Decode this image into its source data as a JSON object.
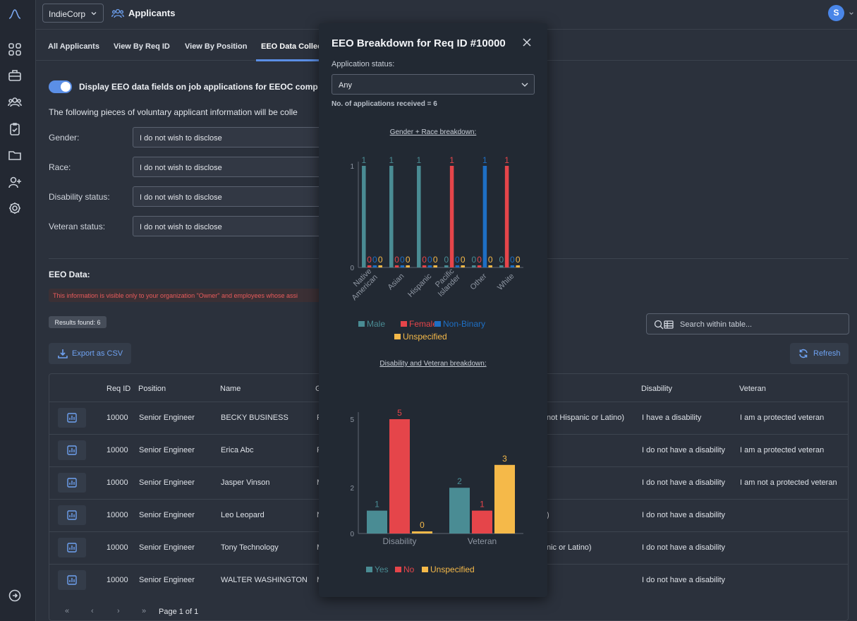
{
  "rail": {
    "items": [
      "logo-icon",
      "grid-icon",
      "briefcase-icon",
      "users-icon",
      "clipboard-icon",
      "folder-icon",
      "user-plus-icon",
      "gear-icon",
      "sign-out-icon"
    ]
  },
  "header": {
    "org": "IndieCorp",
    "title": "Applicants",
    "avatar": "S"
  },
  "tabs": [
    "All Applicants",
    "View By Req ID",
    "View By Position",
    "EEO Data Collec"
  ],
  "eeo_settings": {
    "toggle_label": "Display EEO data fields on job applications for EEOC comp",
    "intro": "The following pieces of voluntary applicant information will be colle",
    "fields": [
      {
        "label": "Gender:",
        "value": "I do not wish to disclose"
      },
      {
        "label": "Race:",
        "value": "I do not wish to disclose"
      },
      {
        "label": "Disability status:",
        "value": "I do not wish to disclose"
      },
      {
        "label": "Veteran status:",
        "value": "I do not wish to disclose"
      }
    ]
  },
  "eeo_data": {
    "title": "EEO Data:",
    "note": "This information is visible only to your organization \"Owner\" and employees whose assi",
    "results": "Results found: 6",
    "search_placeholder": "Search within table...",
    "export_label": "Export as CSV",
    "refresh_label": "Refresh"
  },
  "table": {
    "columns": [
      "Req ID",
      "Position",
      "Name",
      "G",
      "Disability",
      "Veteran"
    ],
    "rows": [
      {
        "req": "10000",
        "position": "Senior Engineer",
        "name": "BECKY BUSINESS",
        "g": "F",
        "race": "not Hispanic or Latino)",
        "disability": "I have a disability",
        "veteran": "I am a protected veteran"
      },
      {
        "req": "10000",
        "position": "Senior Engineer",
        "name": "Erica Abc",
        "g": "F",
        "race": "",
        "disability": "I do not have a disability",
        "veteran": "I am a protected veteran"
      },
      {
        "req": "10000",
        "position": "Senior Engineer",
        "name": "Jasper Vinson",
        "g": "M",
        "race": "",
        "disability": "I do not have a disability",
        "veteran": "I am not a protected veteran"
      },
      {
        "req": "10000",
        "position": "Senior Engineer",
        "name": "Leo Leopard",
        "g": "N",
        "race": ")",
        "disability": "I do not have a disability",
        "veteran": ""
      },
      {
        "req": "10000",
        "position": "Senior Engineer",
        "name": "Tony Technology",
        "g": "M",
        "race": "nic or Latino)",
        "disability": "I do not have a disability",
        "veteran": ""
      },
      {
        "req": "10000",
        "position": "Senior Engineer",
        "name": "WALTER WASHINGTON",
        "g": "M",
        "race": "",
        "disability": "I do not have a disability",
        "veteran": ""
      }
    ],
    "pager": "Page 1 of 1"
  },
  "modal": {
    "title": "EEO Breakdown for Req ID #10000",
    "status_label": "Application status:",
    "status_value": "Any",
    "count_text": "No. of applications received = 6"
  },
  "colors": {
    "male": "#4a8c94",
    "female": "#e5454a",
    "nonbinary": "#1e6fc4",
    "unspecified": "#f5b949",
    "accent": "#5b8fe6"
  },
  "chart_data": [
    {
      "type": "bar",
      "title": "Gender + Race breakdown:",
      "categories": [
        "Native American",
        "Asian",
        "Hispanic",
        "Pacific Islander",
        "Other",
        "White"
      ],
      "series": [
        {
          "name": "Male",
          "values": [
            1,
            1,
            1,
            0,
            0,
            0
          ]
        },
        {
          "name": "Female",
          "values": [
            0,
            0,
            0,
            1,
            0,
            1
          ]
        },
        {
          "name": "Non-Binary",
          "values": [
            0,
            0,
            0,
            0,
            1,
            0
          ]
        },
        {
          "name": "Unspecified",
          "values": [
            0,
            0,
            0,
            0,
            0,
            0
          ]
        }
      ],
      "yticks": [
        0,
        1
      ],
      "ylim": [
        0,
        1
      ]
    },
    {
      "type": "bar",
      "title": "Disability and Veteran breakdown:",
      "categories": [
        "Disability",
        "Veteran"
      ],
      "series": [
        {
          "name": "Yes",
          "values": [
            1,
            2
          ]
        },
        {
          "name": "No",
          "values": [
            5,
            1
          ]
        },
        {
          "name": "Unspecified",
          "values": [
            0,
            3
          ]
        }
      ],
      "yticks": [
        0,
        2,
        5
      ],
      "ylim": [
        0,
        5
      ]
    }
  ]
}
